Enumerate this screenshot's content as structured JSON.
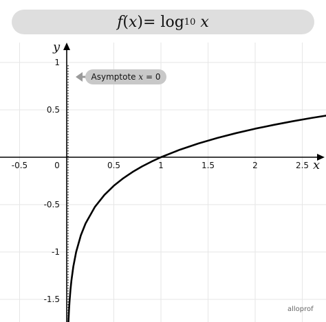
{
  "title": {
    "fn": "f",
    "paren_open": "(",
    "var": "x",
    "paren_close": ")",
    "equals": " = log",
    "base": "10",
    "arg": "x"
  },
  "chart_data": {
    "type": "line",
    "xlabel": "x",
    "ylabel": "y",
    "xlim": [
      -0.7,
      2.77
    ],
    "ylim": [
      -1.75,
      1.1
    ],
    "x_ticks": [
      {
        "value": -0.5,
        "label": "-0.5"
      },
      {
        "value": 0.5,
        "label": "0.5"
      },
      {
        "value": 1,
        "label": "1"
      },
      {
        "value": 1.5,
        "label": "1.5"
      },
      {
        "value": 2,
        "label": "2"
      },
      {
        "value": 2.5,
        "label": "2.5"
      }
    ],
    "y_ticks": [
      {
        "value": 1,
        "label": "1"
      },
      {
        "value": 0.5,
        "label": "0.5"
      },
      {
        "value": -0.5,
        "label": "-0.5"
      },
      {
        "value": -1,
        "label": "-1"
      },
      {
        "value": -1.5,
        "label": "-1.5"
      }
    ],
    "origin_label": "0",
    "grid": true,
    "series": [
      {
        "function": "log10",
        "x": [
          0.018,
          0.02,
          0.025,
          0.03,
          0.04,
          0.05,
          0.07,
          0.1,
          0.15,
          0.2,
          0.3,
          0.4,
          0.5,
          0.6,
          0.7,
          0.8,
          0.9,
          1.0,
          1.2,
          1.4,
          1.6,
          1.8,
          2.0,
          2.2,
          2.4,
          2.6,
          2.77
        ],
        "y": [
          -1.745,
          -1.699,
          -1.602,
          -1.523,
          -1.398,
          -1.301,
          -1.155,
          -1.0,
          -0.824,
          -0.699,
          -0.523,
          -0.398,
          -0.301,
          -0.222,
          -0.155,
          -0.097,
          -0.046,
          0.0,
          0.079,
          0.146,
          0.204,
          0.255,
          0.301,
          0.342,
          0.38,
          0.415,
          0.442
        ],
        "color": "#000000"
      }
    ],
    "asymptote": {
      "x": 0,
      "label_prefix": "Asymptote ",
      "label_var": "x",
      "label_rest": " = 0"
    }
  },
  "brand": "alloprof"
}
